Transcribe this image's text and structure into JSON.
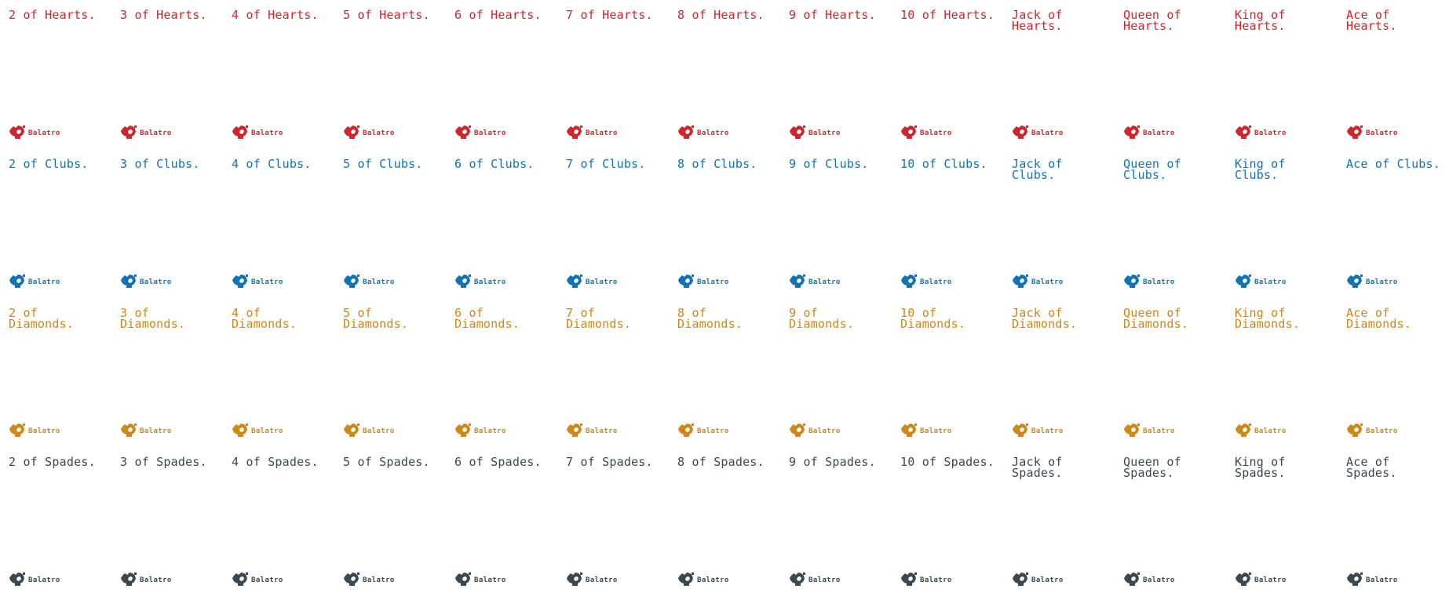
{
  "brand_text": "Balatro",
  "brand_icon": "joker-hat-icon",
  "suits": [
    {
      "key": "hearts",
      "color": "#d0262b",
      "cards": [
        "2 of Hearts.",
        "3 of Hearts.",
        "4 of Hearts.",
        "5 of Hearts.",
        "6 of Hearts.",
        "7 of Hearts.",
        "8 of Hearts.",
        "9 of Hearts.",
        "10 of Hearts.",
        "Jack of Hearts.",
        "Queen of Hearts.",
        "King of Hearts.",
        "Ace of Hearts."
      ]
    },
    {
      "key": "clubs",
      "color": "#1173b7",
      "cards": [
        "2 of Clubs.",
        "3 of Clubs.",
        "4 of Clubs.",
        "5 of Clubs.",
        "6 of Clubs.",
        "7 of Clubs.",
        "8 of Clubs.",
        "9 of Clubs.",
        "10 of Clubs.",
        "Jack of Clubs.",
        "Queen of Clubs.",
        "King of Clubs.",
        "Ace of Clubs."
      ]
    },
    {
      "key": "diamonds",
      "color": "#cf8716",
      "cards": [
        "2 of Diamonds.",
        "3 of Diamonds.",
        "4 of Diamonds.",
        "5 of Diamonds.",
        "6 of Diamonds.",
        "7 of Diamonds.",
        "8 of Diamonds.",
        "9 of Diamonds.",
        "10 of Diamonds.",
        "Jack of Diamonds.",
        "Queen of Diamonds.",
        "King of Diamonds.",
        "Ace of Diamonds."
      ]
    },
    {
      "key": "spades",
      "color": "#3a4851",
      "cards": [
        "2 of Spades.",
        "3 of Spades.",
        "4 of Spades.",
        "5 of Spades.",
        "6 of Spades.",
        "7 of Spades.",
        "8 of Spades.",
        "9 of Spades.",
        "10 of Spades.",
        "Jack of Spades.",
        "Queen of Spades.",
        "King of Spades.",
        "Ace of Spades."
      ]
    }
  ]
}
